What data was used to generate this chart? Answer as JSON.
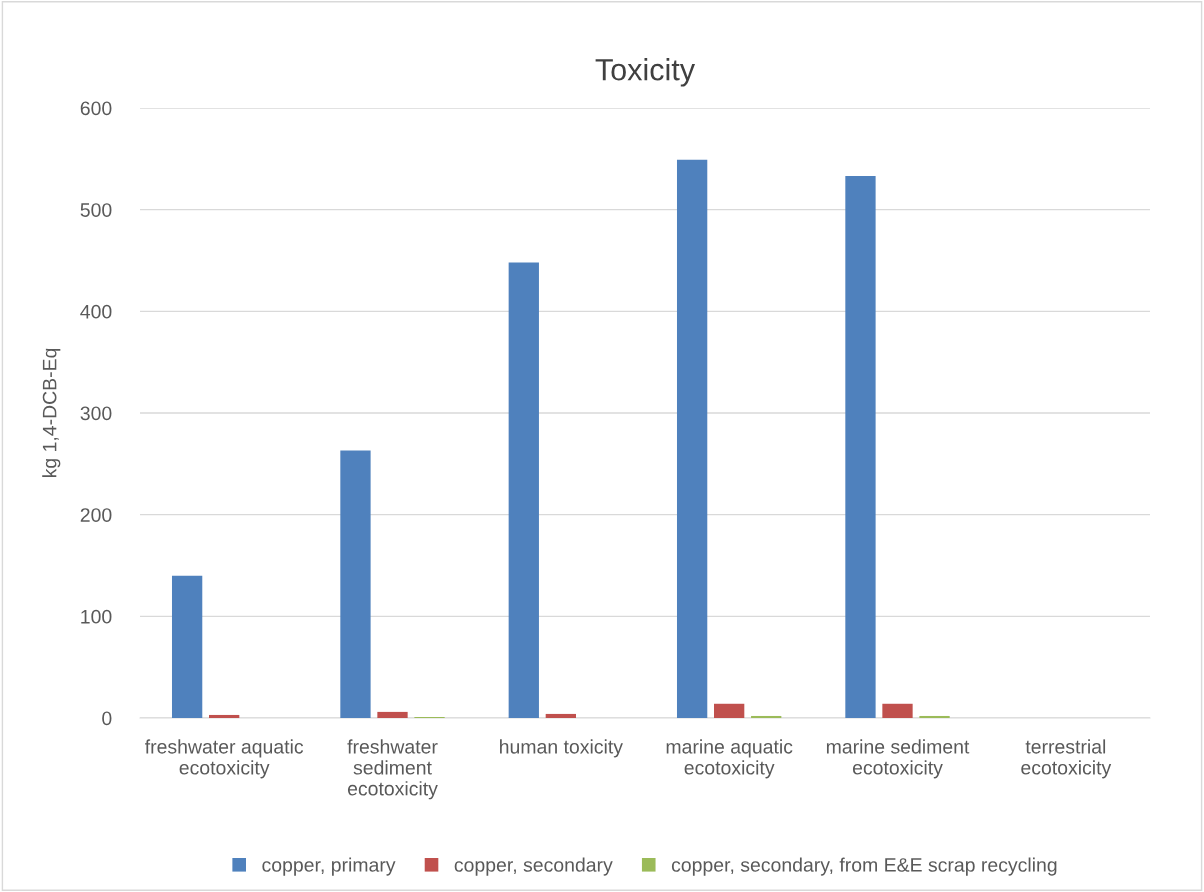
{
  "chart_data": {
    "type": "bar",
    "title": "Toxicity",
    "ylabel": "kg 1,4-DCB-Eq",
    "categories": [
      "freshwater aquatic ecotoxicity",
      "freshwater sediment ecotoxicity",
      "human toxicity",
      "marine aquatic ecotoxicity",
      "marine sediment ecotoxicity",
      "terrestrial ecotoxicity"
    ],
    "series": [
      {
        "name": "copper, primary",
        "color": "#4f81bd",
        "values": [
          140,
          263,
          448,
          549,
          533,
          0
        ]
      },
      {
        "name": "copper, secondary",
        "color": "#c0504d",
        "values": [
          3,
          6,
          4,
          14,
          14,
          0
        ]
      },
      {
        "name": "copper, secondary, from E&E scrap recycling",
        "color": "#9bbb59",
        "values": [
          0,
          1,
          0,
          2,
          2,
          0
        ]
      }
    ],
    "ylim": [
      0,
      600
    ],
    "yticks": [
      0,
      100,
      200,
      300,
      400,
      500,
      600
    ],
    "grid": "y",
    "legend": "bottom"
  }
}
